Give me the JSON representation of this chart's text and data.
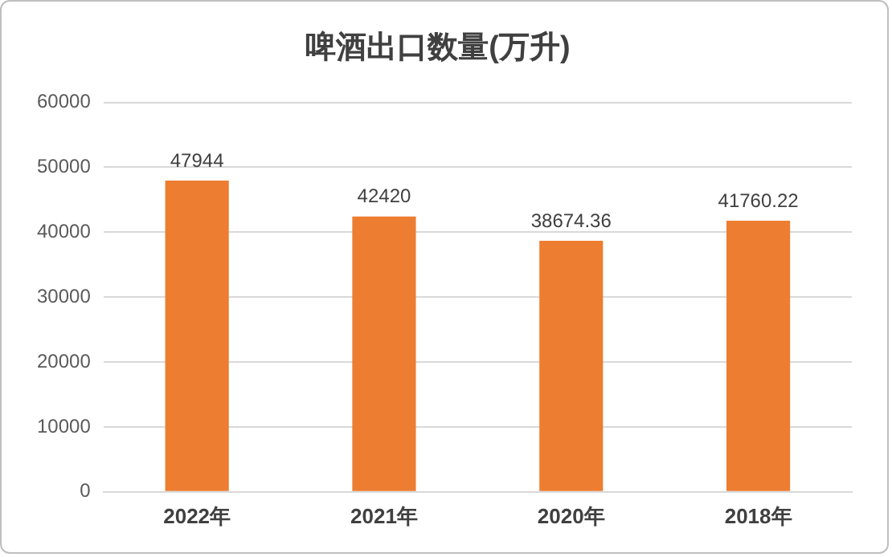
{
  "chart_data": {
    "type": "bar",
    "title": "啤酒出口数量(万升)",
    "categories": [
      "2022年",
      "2021年",
      "2020年",
      "2018年"
    ],
    "values": [
      47944,
      42420,
      38674.36,
      41760.22
    ],
    "color": "#ed7d31",
    "ylim": [
      0,
      60000
    ],
    "yticks": [
      0,
      10000,
      20000,
      30000,
      40000,
      50000,
      60000
    ],
    "grid": "y",
    "data_labels": true
  }
}
